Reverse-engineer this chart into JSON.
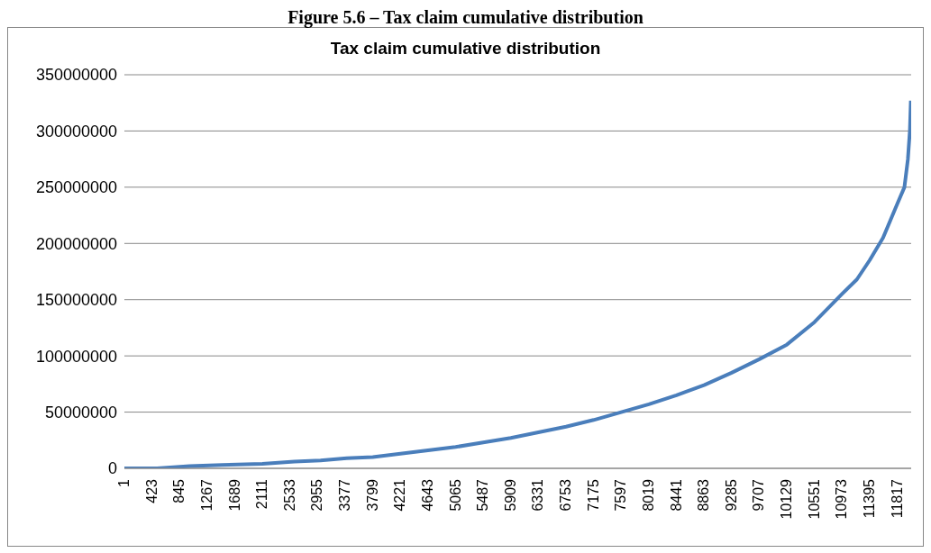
{
  "chart_data": {
    "type": "line",
    "title": "Tax claim cumulative distribution",
    "annotations": [
      "Figure 5.6 – Tax claim cumulative distribution"
    ],
    "x": [
      1,
      500,
      1000,
      1500,
      2111,
      2600,
      3000,
      3400,
      3799,
      4221,
      4643,
      5065,
      5487,
      5909,
      6331,
      6753,
      7175,
      7597,
      8019,
      8441,
      8863,
      9285,
      9707,
      10129,
      10551,
      10973,
      11200,
      11395,
      11600,
      11817,
      11927,
      11980,
      12010,
      12025
    ],
    "series": [
      {
        "color": "#4a7ebb",
        "values": [
          0,
          0,
          2000000,
          3000000,
          4000000,
          6000000,
          7000000,
          9000000,
          10000000,
          13000000,
          16000000,
          19000000,
          23000000,
          27000000,
          32000000,
          37000000,
          43000000,
          50000000,
          57000000,
          65000000,
          74000000,
          85000000,
          97000000,
          110000000,
          130000000,
          155000000,
          168000000,
          185000000,
          205000000,
          235000000,
          250000000,
          275000000,
          300000000,
          327000000
        ]
      }
    ],
    "xlim": [
      1,
      12030
    ],
    "xticks": [
      1,
      423,
      845,
      1267,
      1689,
      2111,
      2533,
      2955,
      3377,
      3799,
      4221,
      4643,
      5065,
      5487,
      5909,
      6331,
      6753,
      7175,
      7597,
      8019,
      8441,
      8863,
      9285,
      9707,
      10129,
      10551,
      10973,
      11395,
      11817
    ],
    "ylim": [
      0,
      350000000
    ],
    "yticks": [
      0,
      50000000,
      100000000,
      150000000,
      200000000,
      250000000,
      300000000,
      350000000
    ],
    "grid": "y",
    "legend": false,
    "marker": "none",
    "line_style": "solid"
  }
}
